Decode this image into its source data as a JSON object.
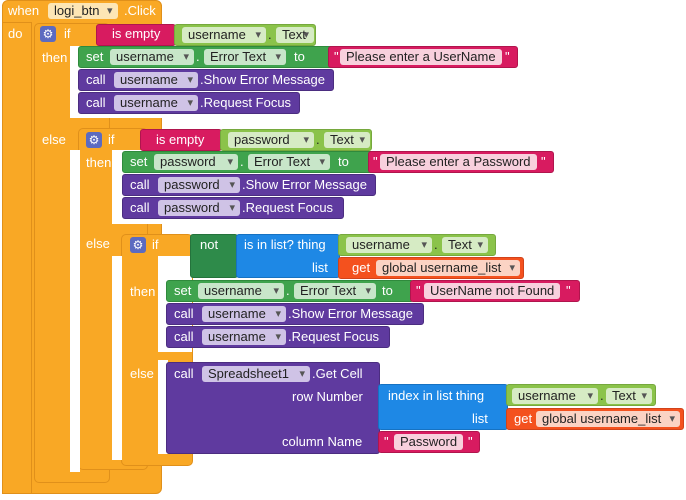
{
  "event": {
    "when": "when",
    "component": "logi_btn",
    "event_name": ".Click",
    "do": "do"
  },
  "kw": {
    "if": "if",
    "then": "then",
    "else": "else",
    "is_empty": "is empty",
    "set": "set",
    "to": "to",
    "call": "call",
    "dot": ".",
    "not": "not",
    "is_in_list": "is in list? thing",
    "list": "list",
    "get": "get",
    "row_number": "row Number",
    "column_name": "column Name",
    "index_in_list": "index in list  thing"
  },
  "comp": {
    "username": "username",
    "password": "password",
    "spreadsheet": "Spreadsheet1"
  },
  "prop": {
    "text": "Text",
    "error_text": "Error Text"
  },
  "method": {
    "show_error": ".Show Error Message",
    "request_focus": ".Request Focus",
    "get_cell": ".Get Cell"
  },
  "strings": {
    "enter_username": "Please enter a UserName",
    "enter_password": "Please enter a Password",
    "not_found": "UserName not Found",
    "password": "Password"
  },
  "vars": {
    "username_list": "global username_list"
  },
  "icons": {
    "mutator": "gear-icon",
    "dropdown": "chevron-down-icon"
  }
}
